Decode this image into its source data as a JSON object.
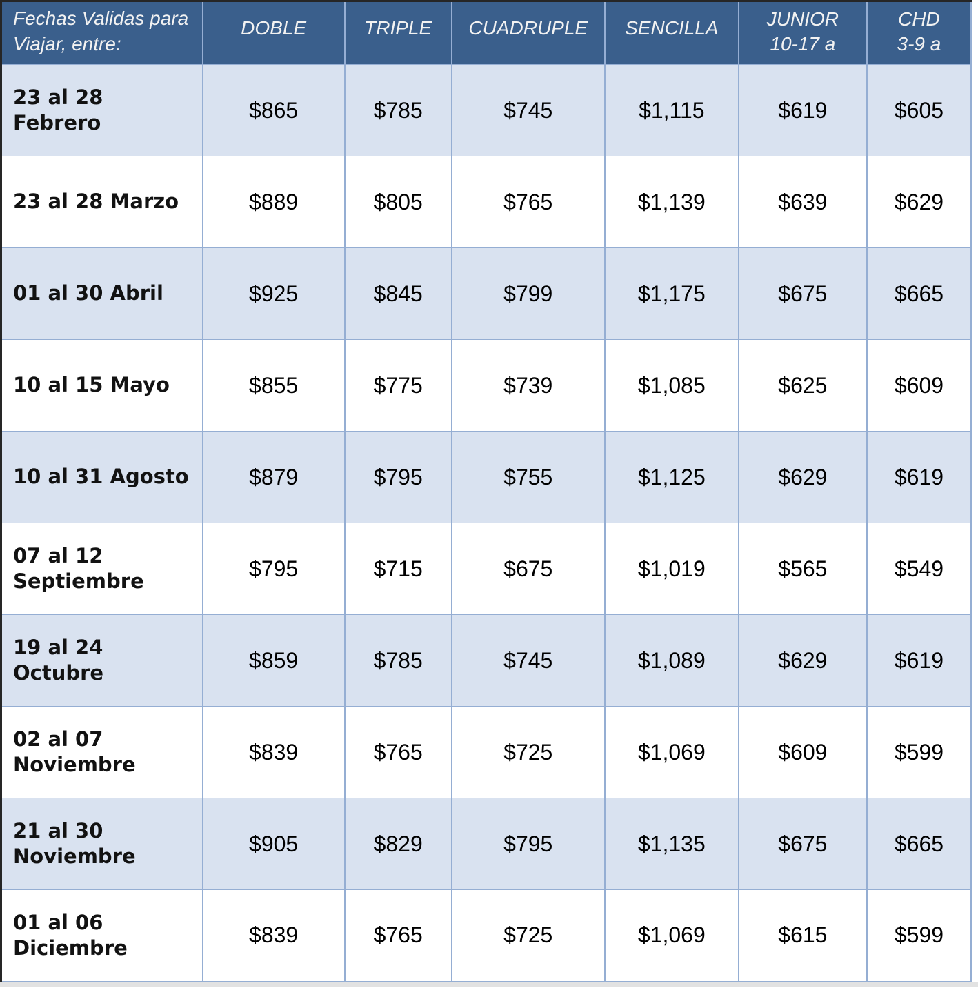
{
  "table": {
    "header": {
      "date_column_label": "Fechas Validas para\nViajar, entre:",
      "columns": [
        {
          "line1": "DOBLE",
          "line2": ""
        },
        {
          "line1": "TRIPLE",
          "line2": ""
        },
        {
          "line1": "CUADRUPLE",
          "line2": ""
        },
        {
          "line1": "SENCILLA",
          "line2": ""
        },
        {
          "line1": "JUNIOR",
          "line2": "10-17 a"
        },
        {
          "line1": "CHD",
          "line2": "3-9 a"
        }
      ]
    },
    "rows": [
      {
        "date": "23 al 28\nFebrero",
        "prices": [
          "$865",
          "$785",
          "$745",
          "$1,115",
          "$619",
          "$605"
        ]
      },
      {
        "date": "23 al 28 Marzo",
        "prices": [
          "$889",
          "$805",
          "$765",
          "$1,139",
          "$639",
          "$629"
        ]
      },
      {
        "date": "01 al 30 Abril",
        "prices": [
          "$925",
          "$845",
          "$799",
          "$1,175",
          "$675",
          "$665"
        ]
      },
      {
        "date": "10 al 15 Mayo",
        "prices": [
          "$855",
          "$775",
          "$739",
          "$1,085",
          "$625",
          "$609"
        ]
      },
      {
        "date": "10 al 31 Agosto",
        "prices": [
          "$879",
          "$795",
          "$755",
          "$1,125",
          "$629",
          "$619"
        ]
      },
      {
        "date": "07 al 12\nSeptiembre",
        "prices": [
          "$795",
          "$715",
          "$675",
          "$1,019",
          "$565",
          "$549"
        ]
      },
      {
        "date": "19 al 24\nOctubre",
        "prices": [
          "$859",
          "$785",
          "$745",
          "$1,089",
          "$629",
          "$619"
        ]
      },
      {
        "date": "02 al 07\nNoviembre",
        "prices": [
          "$839",
          "$765",
          "$725",
          "$1,069",
          "$609",
          "$599"
        ]
      },
      {
        "date": "21 al 30\nNoviembre",
        "prices": [
          "$905",
          "$829",
          "$795",
          "$1,135",
          "$675",
          "$665"
        ]
      },
      {
        "date": "01 al 06\nDiciembre",
        "prices": [
          "$839",
          "$765",
          "$725",
          "$1,069",
          "$615",
          "$599"
        ]
      }
    ]
  },
  "chart_data": {
    "type": "table",
    "columns": [
      "Fechas Validas para Viajar, entre:",
      "DOBLE",
      "TRIPLE",
      "CUADRUPLE",
      "SENCILLA",
      "JUNIOR 10-17 a",
      "CHD 3-9 a"
    ],
    "rows": [
      [
        "23 al 28 Febrero",
        865,
        785,
        745,
        1115,
        619,
        605
      ],
      [
        "23 al 28 Marzo",
        889,
        805,
        765,
        1139,
        639,
        629
      ],
      [
        "01 al 30 Abril",
        925,
        845,
        799,
        1175,
        675,
        665
      ],
      [
        "10 al 15 Mayo",
        855,
        775,
        739,
        1085,
        625,
        609
      ],
      [
        "10 al 31 Agosto",
        879,
        795,
        755,
        1125,
        629,
        619
      ],
      [
        "07 al 12 Septiembre",
        795,
        715,
        675,
        1019,
        565,
        549
      ],
      [
        "19 al 24 Octubre",
        859,
        785,
        745,
        1089,
        629,
        619
      ],
      [
        "02 al 07 Noviembre",
        839,
        765,
        725,
        1069,
        609,
        599
      ],
      [
        "21 al 30 Noviembre",
        905,
        829,
        795,
        1135,
        675,
        665
      ],
      [
        "01 al 06 Diciembre",
        839,
        765,
        725,
        1069,
        615,
        599
      ]
    ],
    "currency_symbol": "$"
  },
  "colors": {
    "header_bg": "#3A5F8C",
    "header_text": "#F2F2F2",
    "row_alt_bg": "#D9E2F0",
    "row_bg": "#FFFFFF",
    "grid_line": "#95AED3",
    "outer_border": "#262626",
    "cell_text": "#000000",
    "date_text": "#121212",
    "bottom_strip": "#E2E2E2"
  }
}
